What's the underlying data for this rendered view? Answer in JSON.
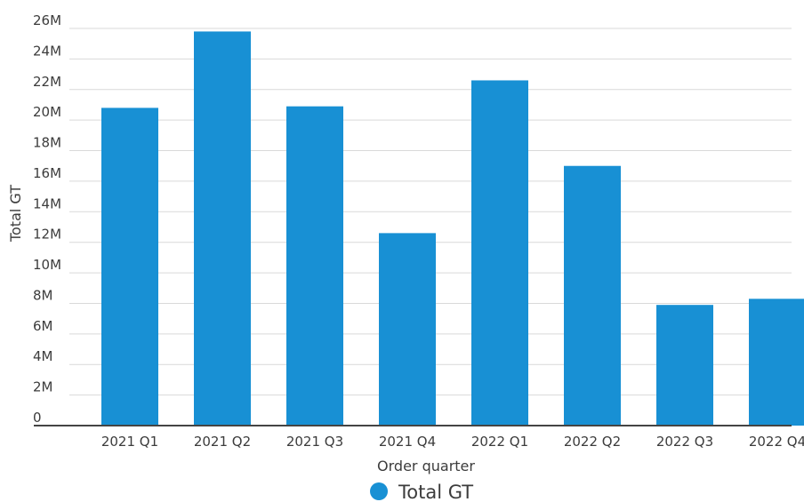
{
  "chart_data": {
    "type": "bar",
    "categories": [
      "2021 Q1",
      "2021 Q2",
      "2021 Q3",
      "2021 Q4",
      "2022 Q1",
      "2022 Q2",
      "2022 Q3",
      "2022 Q4"
    ],
    "series": [
      {
        "name": "Total GT",
        "values": [
          20800000,
          25800000,
          20900000,
          12600000,
          22600000,
          17000000,
          7900000,
          8300000
        ]
      }
    ],
    "title": "",
    "xlabel": "Order quarter",
    "ylabel": "Total GT",
    "ylim": [
      0,
      26000000
    ],
    "yticks": [
      0,
      2000000,
      4000000,
      6000000,
      8000000,
      10000000,
      12000000,
      14000000,
      16000000,
      18000000,
      20000000,
      22000000,
      24000000,
      26000000
    ],
    "ytick_labels": [
      "0",
      "2M",
      "4M",
      "6M",
      "8M",
      "10M",
      "12M",
      "14M",
      "16M",
      "18M",
      "20M",
      "22M",
      "24M",
      "26M"
    ],
    "grid": true,
    "legend": {
      "position": "bottom-center",
      "entries": [
        "Total GT"
      ]
    },
    "colors": {
      "bar": "#1890d4",
      "grid": "#d9d9d9",
      "axis": "#444444"
    }
  }
}
